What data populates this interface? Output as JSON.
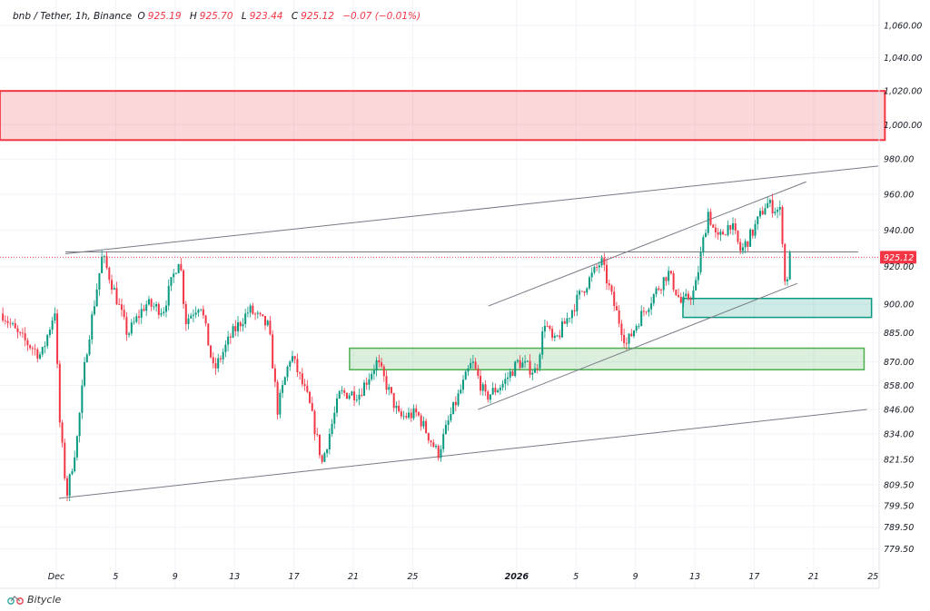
{
  "legend": {
    "symbol": "bnb / Tether, 1h, Binance",
    "open_label": "O",
    "open": "925.19",
    "high_label": "H",
    "high": "925.70",
    "low_label": "L",
    "low": "923.44",
    "close_label": "C",
    "close": "925.12",
    "change": "−0.07 (−0.01%)"
  },
  "brand": {
    "name": "Bitycle",
    "icon": "bicycle-icon"
  },
  "colors": {
    "up": "#089981",
    "down": "#f23645",
    "resistance": "#f23645",
    "support": "#4caf50",
    "line": "#787b86"
  },
  "chart_data": {
    "type": "candlestick",
    "title": "bnb / Tether, 1h, Binance",
    "y_scale": "log",
    "ylim": [
      772,
      1075
    ],
    "xlim_days_from_dec1": [
      -3.8,
      55.8
    ],
    "grid": true,
    "y_ticks": [
      "1,060.00",
      "1,040.00",
      "1,020.00",
      "1,000.00",
      "980.00",
      "960.00",
      "940.00",
      "920.00",
      "900.00",
      "885.00",
      "870.00",
      "858.00",
      "846.00",
      "834.00",
      "821.50",
      "809.50",
      "799.50",
      "789.50",
      "779.50"
    ],
    "y_tick_values": [
      1060,
      1040,
      1020,
      1000,
      980,
      960,
      940,
      920,
      900,
      885,
      870,
      858,
      846,
      834,
      821.5,
      809.5,
      799.5,
      789.5,
      779.5
    ],
    "x_ticks": [
      {
        "label": "Dec",
        "t": 0,
        "bold": false
      },
      {
        "label": "5",
        "t": 4
      },
      {
        "label": "9",
        "t": 8
      },
      {
        "label": "13",
        "t": 12
      },
      {
        "label": "17",
        "t": 16
      },
      {
        "label": "21",
        "t": 20
      },
      {
        "label": "25",
        "t": 24
      },
      {
        "label": "2026",
        "t": 31,
        "bold": true
      },
      {
        "label": "5",
        "t": 35
      },
      {
        "label": "9",
        "t": 39
      },
      {
        "label": "13",
        "t": 43
      },
      {
        "label": "17",
        "t": 47
      },
      {
        "label": "21",
        "t": 51
      },
      {
        "label": "25",
        "t": 55
      }
    ],
    "last_price": {
      "value": 925.12,
      "label": "925.12"
    },
    "price_path": [
      [
        -3.6,
        895
      ],
      [
        -2.6,
        884
      ],
      [
        -1.0,
        873
      ],
      [
        -0.1,
        897
      ],
      [
        0.2,
        842
      ],
      [
        0.7,
        804
      ],
      [
        1.4,
        832
      ],
      [
        2.0,
        874
      ],
      [
        3.1,
        926
      ],
      [
        3.9,
        907
      ],
      [
        4.8,
        884
      ],
      [
        6.0,
        900
      ],
      [
        7.2,
        897
      ],
      [
        8.3,
        926
      ],
      [
        8.7,
        891
      ],
      [
        9.7,
        901
      ],
      [
        10.6,
        865
      ],
      [
        11.8,
        884
      ],
      [
        13.0,
        897
      ],
      [
        14.3,
        888
      ],
      [
        14.9,
        846
      ],
      [
        15.8,
        874
      ],
      [
        17.0,
        850
      ],
      [
        17.9,
        820
      ],
      [
        19.1,
        854
      ],
      [
        20.4,
        854
      ],
      [
        21.6,
        870
      ],
      [
        23.1,
        842
      ],
      [
        24.3,
        844
      ],
      [
        25.7,
        824
      ],
      [
        26.5,
        842
      ],
      [
        28.0,
        870
      ],
      [
        28.9,
        852
      ],
      [
        30.1,
        859
      ],
      [
        31.1,
        870
      ],
      [
        32.3,
        865
      ],
      [
        32.9,
        891
      ],
      [
        33.5,
        879
      ],
      [
        35.4,
        907
      ],
      [
        36.7,
        923
      ],
      [
        37.5,
        901
      ],
      [
        38.4,
        879
      ],
      [
        39.3,
        893
      ],
      [
        41.2,
        917
      ],
      [
        42.1,
        900
      ],
      [
        43.0,
        907
      ],
      [
        43.9,
        950
      ],
      [
        44.5,
        934
      ],
      [
        45.4,
        944
      ],
      [
        46.1,
        928
      ],
      [
        46.9,
        939
      ],
      [
        47.8,
        955
      ],
      [
        48.8,
        950
      ],
      [
        49.1,
        907
      ],
      [
        49.4,
        925.12
      ]
    ],
    "zones": [
      {
        "name": "resistance-zone",
        "t0": -3.8,
        "t1": 55.8,
        "top": 1020,
        "bottom": 991,
        "color": "#f23645"
      },
      {
        "name": "support-zone-upper",
        "t0": 42.2,
        "t1": 54.9,
        "top": 903,
        "bottom": 893,
        "color": "#089981"
      },
      {
        "name": "support-zone-lower",
        "t0": 19.75,
        "t1": 54.4,
        "top": 877,
        "bottom": 866,
        "color": "#4caf50"
      }
    ],
    "trendlines": [
      {
        "name": "horizontal-level",
        "t0": 0.61,
        "p0": 928,
        "t1": 54.0,
        "p1": 928
      },
      {
        "name": "upper-trendline",
        "t0": 0.61,
        "p0": 927,
        "t1": 55.35,
        "p1": 976
      },
      {
        "name": "lower-trendline",
        "t0": 0.18,
        "p0": 803,
        "t1": 54.6,
        "p1": 846
      },
      {
        "name": "channel-upper",
        "t0": 29.1,
        "p0": 899,
        "t1": 50.5,
        "p1": 967
      },
      {
        "name": "channel-lower",
        "t0": 28.4,
        "p0": 846,
        "t1": 49.9,
        "p1": 911
      }
    ]
  }
}
